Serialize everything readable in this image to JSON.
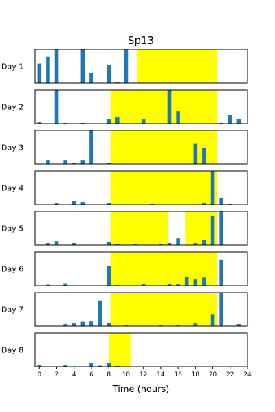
{
  "chart_data": {
    "type": "bar",
    "title": "Sp13",
    "xlabel": "Time (hours)",
    "xlim": [
      -0.5,
      24
    ],
    "xticks": [
      0,
      2,
      4,
      6,
      8,
      10,
      12,
      14,
      16,
      18,
      20,
      22,
      24
    ],
    "bar_color": "#1f77b4",
    "highlight_color": "#ffff00",
    "days": [
      {
        "label": "Day 1",
        "highlights": [
          [
            11.3,
            20.5
          ]
        ],
        "x": [
          0,
          1,
          2,
          5,
          6,
          8,
          9,
          10
        ],
        "values": [
          0.58,
          0.78,
          1.0,
          1.0,
          0.3,
          0.55,
          0.02,
          1.0
        ]
      },
      {
        "label": "Day 2",
        "highlights": [
          [
            8.2,
            20.5
          ]
        ],
        "x": [
          0,
          2,
          3,
          5,
          8,
          9,
          12,
          15,
          16,
          21,
          22,
          23
        ],
        "values": [
          0.05,
          1.0,
          0.02,
          0.02,
          0.14,
          0.18,
          0.12,
          1.0,
          0.38,
          0.02,
          0.25,
          0.13
        ]
      },
      {
        "label": "Day 3",
        "highlights": [
          [
            8.2,
            20.5
          ]
        ],
        "x": [
          1,
          3,
          4,
          5,
          6,
          8,
          18,
          19
        ],
        "values": [
          0.12,
          0.12,
          0.04,
          0.12,
          1.0,
          0.04,
          0.62,
          0.48
        ]
      },
      {
        "label": "Day 4",
        "highlights": [
          [
            8.2,
            20.5
          ]
        ],
        "x": [
          2,
          4,
          5,
          8,
          13,
          19,
          20,
          21,
          22
        ],
        "values": [
          0.06,
          0.12,
          0.08,
          0.06,
          0.02,
          0.05,
          1.0,
          0.2,
          0.02
        ]
      },
      {
        "label": "Day 5",
        "highlights": [
          [
            8.2,
            14.8
          ],
          [
            16.8,
            20.5
          ]
        ],
        "x": [
          1,
          2,
          4,
          8,
          9,
          11,
          14,
          15,
          16,
          18,
          19,
          20,
          21
        ],
        "values": [
          0.06,
          0.12,
          0.06,
          0.1,
          0.02,
          0.02,
          0.04,
          0.06,
          0.2,
          0.06,
          0.16,
          0.86,
          1.0
        ]
      },
      {
        "label": "Day 6",
        "highlights": [
          [
            8.2,
            20.5
          ]
        ],
        "x": [
          1,
          3,
          8,
          9,
          12,
          15,
          16,
          17,
          18,
          19,
          21
        ],
        "values": [
          0.03,
          0.07,
          0.58,
          0.02,
          0.04,
          0.04,
          0.04,
          0.26,
          0.18,
          0.24,
          0.78
        ]
      },
      {
        "label": "Day 7",
        "highlights": [
          [
            8.2,
            20.5
          ]
        ],
        "x": [
          3,
          4,
          5,
          6,
          7,
          8,
          10,
          14,
          16,
          18,
          20,
          21,
          23
        ],
        "values": [
          0.06,
          0.08,
          0.13,
          0.14,
          0.76,
          0.1,
          0.02,
          0.02,
          0.02,
          0.08,
          0.34,
          1.0,
          0.06
        ]
      },
      {
        "label": "Day 8",
        "highlights": [
          [
            8.0,
            10.5
          ]
        ],
        "x": [
          0,
          3,
          6,
          7,
          8,
          9
        ],
        "values": [
          0.05,
          0.04,
          0.12,
          0.03,
          0.12,
          0.02
        ]
      }
    ]
  }
}
